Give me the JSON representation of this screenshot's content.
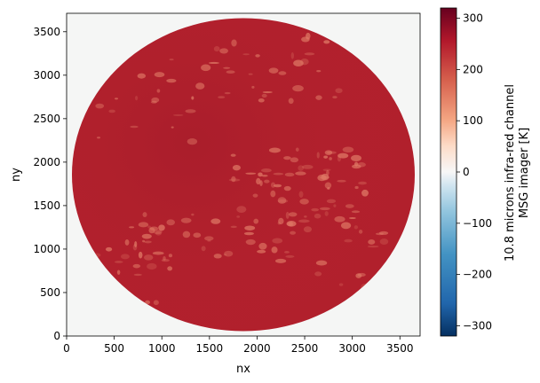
{
  "chart_data": {
    "type": "heatmap",
    "title": "",
    "xlabel": "nx",
    "ylabel": "ny",
    "xlim": [
      0,
      3712
    ],
    "ylim": [
      0,
      3712
    ],
    "x_ticks": [
      0,
      500,
      1000,
      1500,
      2000,
      2500,
      3000,
      3500
    ],
    "y_ticks": [
      0,
      500,
      1000,
      1500,
      2000,
      2500,
      3000,
      3500
    ],
    "x_tick_labels": [
      "0",
      "500",
      "1000",
      "1500",
      "2000",
      "2500",
      "3000",
      "3500"
    ],
    "y_tick_labels": [
      "0",
      "500",
      "1000",
      "1500",
      "2000",
      "2500",
      "3000",
      "3500"
    ],
    "disk": {
      "center": [
        1856,
        1856
      ],
      "radius": 1800
    },
    "colormap": "RdBu_r",
    "colorbar": {
      "label_line1": "10.8 microns infra-red channel",
      "label_line2": "MSG imager [K]",
      "vmin": -320,
      "vmax": 320,
      "ticks": [
        -300,
        -200,
        -100,
        0,
        100,
        200,
        300
      ],
      "tick_labels": [
        "−300",
        "−200",
        "−100",
        "0",
        "100",
        "200",
        "300"
      ]
    },
    "background_color": "#f5f6f5",
    "disk_color": "#b01f2c",
    "cloud_color": "#e07a66",
    "grid": false
  }
}
